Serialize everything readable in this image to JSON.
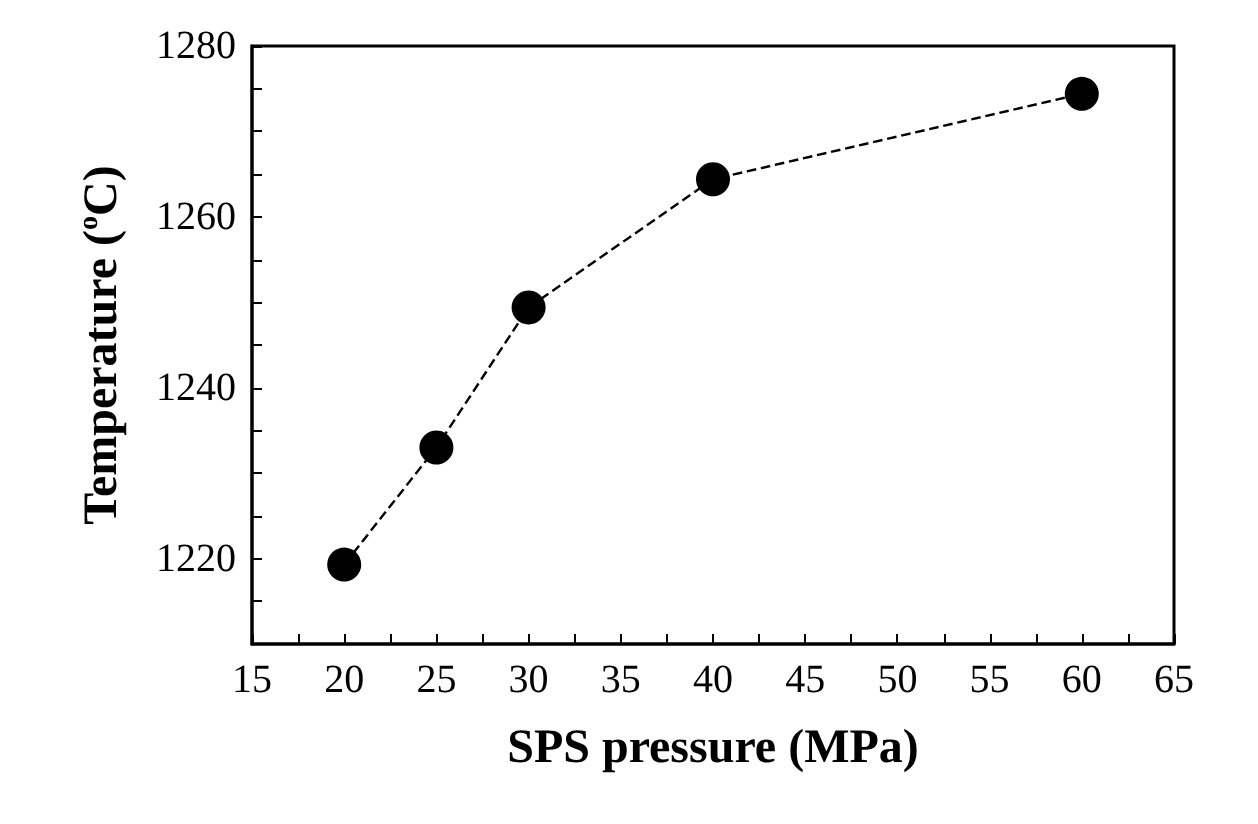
{
  "chart_data": {
    "type": "line",
    "xlabel": "SPS pressure (MPa)",
    "ylabel": "Temperature ($^{o}$C)",
    "x": [
      20,
      25,
      30,
      40,
      60
    ],
    "series": [
      {
        "color": "#000000",
        "values": [
          1219.3,
          1233,
          1249.4,
          1264.4,
          1274.4
        ]
      }
    ],
    "xlim": [
      15,
      65
    ],
    "xticks": [
      15,
      {
        "value": 17.5,
        "label": null
      },
      20,
      {
        "value": 22.5,
        "label": null
      },
      25,
      {
        "value": 27.5,
        "label": null
      },
      30,
      {
        "value": 32.5,
        "label": null
      },
      35,
      {
        "value": 37.5,
        "label": null
      },
      40,
      {
        "value": 42.5,
        "label": null
      },
      45,
      {
        "value": 47.5,
        "label": null
      },
      50,
      {
        "value": 52.5,
        "label": null
      },
      55,
      {
        "value": 57.5,
        "label": null
      },
      60,
      {
        "value": 62.5,
        "label": null
      },
      65
    ],
    "ylim": [
      1210,
      1280
    ],
    "yticks": [
      {
        "value": 1215,
        "label": null
      },
      1220,
      {
        "value": 1225,
        "label": null
      },
      {
        "value": 1230,
        "label": null
      },
      {
        "value": 1235,
        "label": null
      },
      1240,
      {
        "value": 1245,
        "label": null
      },
      {
        "value": 1250,
        "label": null
      },
      {
        "value": 1255,
        "label": null
      },
      1260,
      {
        "value": 1265,
        "label": null
      },
      {
        "value": 1270,
        "label": null
      },
      {
        "value": 1275,
        "label": null
      },
      1280
    ],
    "marker": "circle",
    "line_style": "dashed",
    "grid": false
  }
}
